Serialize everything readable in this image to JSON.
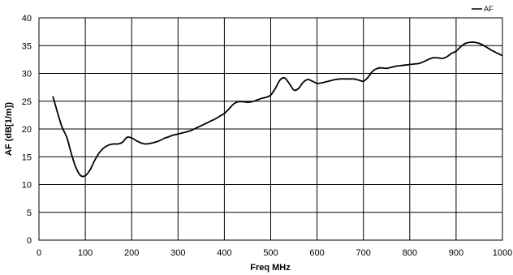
{
  "chart_data": {
    "type": "line",
    "xlabel": "Freq MHz",
    "ylabel": "AF (dB[1/m])",
    "xlim": [
      0,
      1000
    ],
    "ylim": [
      0,
      40
    ],
    "xticks": [
      0,
      100,
      200,
      300,
      400,
      500,
      600,
      700,
      800,
      900,
      1000
    ],
    "yticks": [
      0,
      5,
      10,
      15,
      20,
      25,
      30,
      35,
      40
    ],
    "grid": true,
    "legend_position": "top-right",
    "series": [
      {
        "name": "AF",
        "color": "#000000",
        "points": [
          [
            30,
            25.9
          ],
          [
            40,
            23.0
          ],
          [
            50,
            20.3
          ],
          [
            60,
            18.5
          ],
          [
            70,
            15.5
          ],
          [
            80,
            13.0
          ],
          [
            90,
            11.6
          ],
          [
            100,
            11.6
          ],
          [
            110,
            12.6
          ],
          [
            120,
            14.3
          ],
          [
            130,
            15.7
          ],
          [
            140,
            16.6
          ],
          [
            150,
            17.1
          ],
          [
            160,
            17.3
          ],
          [
            170,
            17.3
          ],
          [
            180,
            17.6
          ],
          [
            190,
            18.5
          ],
          [
            200,
            18.4
          ],
          [
            210,
            17.9
          ],
          [
            220,
            17.5
          ],
          [
            230,
            17.3
          ],
          [
            240,
            17.4
          ],
          [
            250,
            17.6
          ],
          [
            260,
            17.9
          ],
          [
            270,
            18.3
          ],
          [
            280,
            18.6
          ],
          [
            290,
            18.9
          ],
          [
            300,
            19.1
          ],
          [
            310,
            19.3
          ],
          [
            320,
            19.5
          ],
          [
            330,
            19.8
          ],
          [
            340,
            20.2
          ],
          [
            350,
            20.6
          ],
          [
            360,
            21.0
          ],
          [
            370,
            21.4
          ],
          [
            380,
            21.8
          ],
          [
            390,
            22.3
          ],
          [
            400,
            22.8
          ],
          [
            410,
            23.6
          ],
          [
            420,
            24.5
          ],
          [
            430,
            24.9
          ],
          [
            440,
            24.9
          ],
          [
            450,
            24.8
          ],
          [
            460,
            24.9
          ],
          [
            470,
            25.2
          ],
          [
            480,
            25.5
          ],
          [
            490,
            25.7
          ],
          [
            500,
            26.1
          ],
          [
            510,
            27.3
          ],
          [
            520,
            28.8
          ],
          [
            530,
            29.2
          ],
          [
            540,
            28.2
          ],
          [
            550,
            27.0
          ],
          [
            560,
            27.3
          ],
          [
            570,
            28.4
          ],
          [
            580,
            28.9
          ],
          [
            590,
            28.6
          ],
          [
            600,
            28.2
          ],
          [
            610,
            28.3
          ],
          [
            620,
            28.5
          ],
          [
            630,
            28.7
          ],
          [
            640,
            28.9
          ],
          [
            650,
            29.0
          ],
          [
            660,
            29.0
          ],
          [
            670,
            29.0
          ],
          [
            680,
            29.0
          ],
          [
            690,
            28.8
          ],
          [
            700,
            28.6
          ],
          [
            710,
            29.3
          ],
          [
            720,
            30.4
          ],
          [
            730,
            30.9
          ],
          [
            740,
            31.0
          ],
          [
            750,
            30.9
          ],
          [
            760,
            31.1
          ],
          [
            770,
            31.3
          ],
          [
            780,
            31.4
          ],
          [
            790,
            31.5
          ],
          [
            800,
            31.6
          ],
          [
            810,
            31.7
          ],
          [
            820,
            31.8
          ],
          [
            830,
            32.1
          ],
          [
            840,
            32.5
          ],
          [
            850,
            32.8
          ],
          [
            860,
            32.8
          ],
          [
            870,
            32.7
          ],
          [
            880,
            33.0
          ],
          [
            890,
            33.6
          ],
          [
            900,
            34.0
          ],
          [
            910,
            34.8
          ],
          [
            920,
            35.4
          ],
          [
            930,
            35.6
          ],
          [
            940,
            35.6
          ],
          [
            950,
            35.4
          ],
          [
            960,
            35.0
          ],
          [
            970,
            34.5
          ],
          [
            980,
            34.0
          ],
          [
            990,
            33.6
          ],
          [
            1000,
            33.2
          ]
        ]
      }
    ]
  }
}
